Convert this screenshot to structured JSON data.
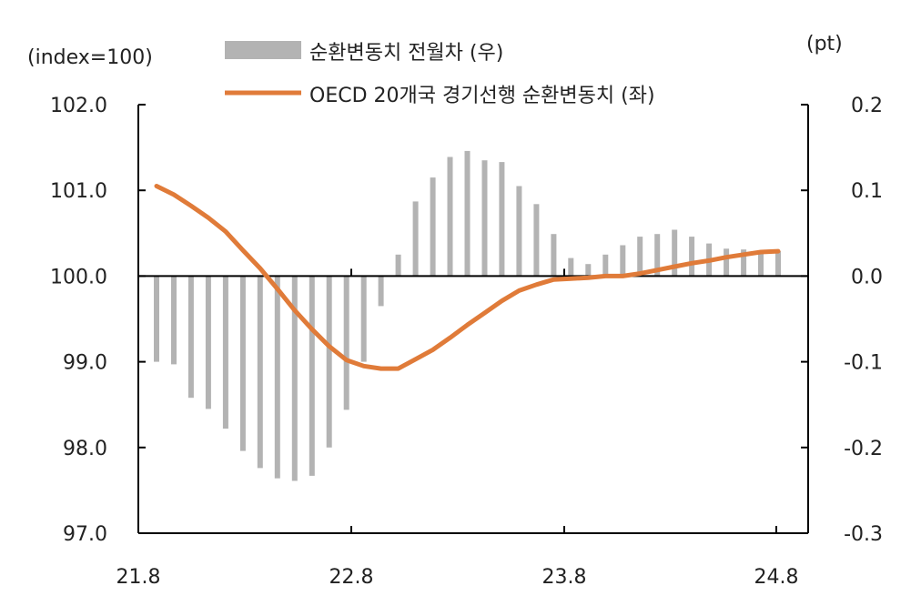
{
  "chart_data": {
    "type": "bar+line",
    "left_unit": "(index=100)",
    "right_unit": "(pt)",
    "x_ticks": [
      "21.8",
      "22.8",
      "23.8",
      "24.8"
    ],
    "left_ticks": [
      "102.0",
      "101.0",
      "100.0",
      "99.0",
      "98.0",
      "97.0"
    ],
    "right_ticks": [
      "0.2",
      "0.1",
      "0.0",
      "-0.1",
      "-0.2",
      "-0.3"
    ],
    "left_ylim": [
      97.0,
      102.0
    ],
    "right_ylim": [
      -0.3,
      0.2
    ],
    "legend_position": "top-center",
    "x": [
      "21.8",
      "21.9",
      "21.10",
      "21.11",
      "21.12",
      "22.1",
      "22.2",
      "22.3",
      "22.4",
      "22.5",
      "22.6",
      "22.7",
      "22.8",
      "22.9",
      "22.10",
      "22.11",
      "22.12",
      "23.1",
      "23.2",
      "23.3",
      "23.4",
      "23.5",
      "23.6",
      "23.7",
      "23.8",
      "23.9",
      "23.10",
      "23.11",
      "23.12",
      "24.1",
      "24.2",
      "24.3",
      "24.4",
      "24.5",
      "24.6",
      "24.7",
      "24.8"
    ],
    "series": [
      {
        "name": "순환변동치 전월차 (우)",
        "kind": "bar",
        "axis": "right",
        "color": "#b3b3b3",
        "values": [
          -0.1,
          -0.103,
          -0.142,
          -0.155,
          -0.178,
          -0.204,
          -0.224,
          -0.236,
          -0.239,
          -0.233,
          -0.2,
          -0.156,
          -0.1,
          -0.035,
          0.025,
          0.087,
          0.115,
          0.139,
          0.146,
          0.135,
          0.133,
          0.105,
          0.084,
          0.049,
          0.021,
          0.014,
          0.025,
          0.036,
          0.046,
          0.049,
          0.054,
          0.046,
          0.038,
          0.032,
          0.031,
          0.028,
          0.029
        ]
      },
      {
        "name": "OECD 20개국 경기선행 순환변동치 (좌)",
        "kind": "line",
        "axis": "left",
        "color": "#e07b39",
        "values": [
          101.05,
          100.95,
          100.82,
          100.68,
          100.52,
          100.3,
          100.09,
          99.85,
          99.6,
          99.38,
          99.18,
          99.02,
          98.95,
          98.92,
          98.92,
          99.03,
          99.14,
          99.28,
          99.43,
          99.57,
          99.71,
          99.83,
          99.9,
          99.96,
          99.97,
          99.98,
          100.0,
          100.0,
          100.03,
          100.07,
          100.11,
          100.15,
          100.18,
          100.22,
          100.25,
          100.28,
          100.29
        ]
      }
    ]
  }
}
